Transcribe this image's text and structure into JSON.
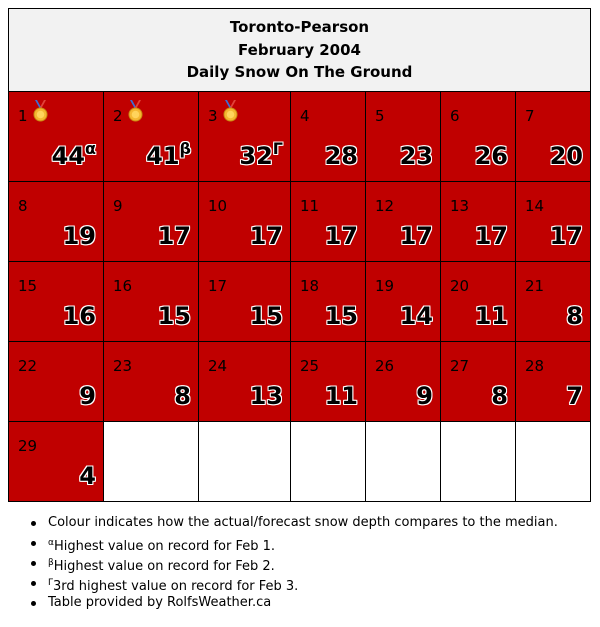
{
  "header": {
    "station": "Toronto-Pearson",
    "month": "February 2004",
    "metric": "Daily Snow On The Ground"
  },
  "colors": {
    "cell": "#c00000",
    "empty": "#ffffff",
    "header_bg": "#f2f2f2"
  },
  "weeks": [
    [
      {
        "day": "1",
        "depth": "44",
        "mark": "α",
        "medal": true
      },
      {
        "day": "2",
        "depth": "41",
        "mark": "β",
        "medal": true
      },
      {
        "day": "3",
        "depth": "32",
        "mark": "Γ",
        "medal": true
      },
      {
        "day": "4",
        "depth": "28"
      },
      {
        "day": "5",
        "depth": "23"
      },
      {
        "day": "6",
        "depth": "26"
      },
      {
        "day": "7",
        "depth": "20"
      }
    ],
    [
      {
        "day": "8",
        "depth": "19"
      },
      {
        "day": "9",
        "depth": "17"
      },
      {
        "day": "10",
        "depth": "17"
      },
      {
        "day": "11",
        "depth": "17"
      },
      {
        "day": "12",
        "depth": "17"
      },
      {
        "day": "13",
        "depth": "17"
      },
      {
        "day": "14",
        "depth": "17"
      }
    ],
    [
      {
        "day": "15",
        "depth": "16"
      },
      {
        "day": "16",
        "depth": "15"
      },
      {
        "day": "17",
        "depth": "15"
      },
      {
        "day": "18",
        "depth": "15"
      },
      {
        "day": "19",
        "depth": "14"
      },
      {
        "day": "20",
        "depth": "11"
      },
      {
        "day": "21",
        "depth": "8"
      }
    ],
    [
      {
        "day": "22",
        "depth": "9"
      },
      {
        "day": "23",
        "depth": "8"
      },
      {
        "day": "24",
        "depth": "13"
      },
      {
        "day": "25",
        "depth": "11"
      },
      {
        "day": "26",
        "depth": "9"
      },
      {
        "day": "27",
        "depth": "8"
      },
      {
        "day": "28",
        "depth": "7"
      }
    ],
    [
      {
        "day": "29",
        "depth": "4"
      },
      null,
      null,
      null,
      null,
      null,
      null
    ]
  ],
  "notes": [
    {
      "mark": "",
      "text": "Colour indicates how the actual/forecast snow depth compares to the median."
    },
    {
      "mark": "α",
      "text": "Highest value on record for Feb 1."
    },
    {
      "mark": "β",
      "text": "Highest value on record for Feb 2."
    },
    {
      "mark": "Γ",
      "text": "3rd highest value on record for Feb 3."
    },
    {
      "mark": "",
      "text": "Table provided by RolfsWeather.ca"
    }
  ]
}
